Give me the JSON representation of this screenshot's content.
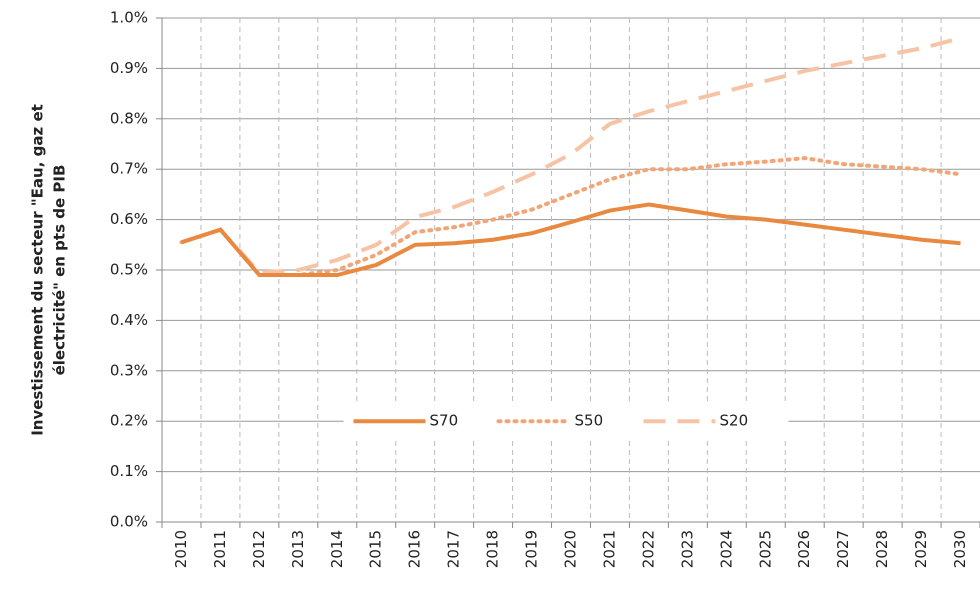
{
  "chart_data": {
    "type": "line",
    "y_label": [
      "Investissement du secteur \"Eau, gaz et",
      "électricité\" en pts de PIB"
    ],
    "categories": [
      "2010",
      "2011",
      "2012",
      "2013",
      "2014",
      "2015",
      "2016",
      "2017",
      "2018",
      "2019",
      "2020",
      "2021",
      "2022",
      "2023",
      "2024",
      "2025",
      "2026",
      "2027",
      "2028",
      "2029",
      "2030"
    ],
    "series": [
      {
        "name": "S70",
        "color": "#e8893f",
        "line_style": "solid",
        "values": [
          0.555,
          0.58,
          0.49,
          0.49,
          0.49,
          0.51,
          0.55,
          0.553,
          0.56,
          0.573,
          0.595,
          0.618,
          0.63,
          0.618,
          0.606,
          0.6,
          0.59,
          0.58,
          0.57,
          0.56,
          0.553
        ]
      },
      {
        "name": "S50",
        "color": "#f2a577",
        "line_style": "dotted",
        "values": [
          0.555,
          0.58,
          0.49,
          0.49,
          0.5,
          0.53,
          0.575,
          0.585,
          0.6,
          0.62,
          0.65,
          0.68,
          0.7,
          0.7,
          0.71,
          0.715,
          0.722,
          0.71,
          0.705,
          0.7,
          0.69
        ]
      },
      {
        "name": "S20",
        "color": "#f7c3a5",
        "line_style": "dashed",
        "values": [
          0.555,
          0.58,
          0.495,
          0.5,
          0.52,
          0.55,
          0.605,
          0.625,
          0.655,
          0.69,
          0.73,
          0.79,
          0.815,
          0.835,
          0.855,
          0.875,
          0.895,
          0.91,
          0.925,
          0.94,
          0.96
        ]
      }
    ],
    "ylim": [
      0,
      1
    ],
    "yticks": [
      {
        "value": 0,
        "label": "0.0%"
      },
      {
        "value": 0.1,
        "label": "0.1%"
      },
      {
        "value": 0.2,
        "label": "0.2%"
      },
      {
        "value": 0.3,
        "label": "0.3%"
      },
      {
        "value": 0.4,
        "label": "0.4%"
      },
      {
        "value": 0.5,
        "label": "0.5%"
      },
      {
        "value": 0.6,
        "label": "0.6%"
      },
      {
        "value": 0.7,
        "label": "0.7%"
      },
      {
        "value": 0.8,
        "label": "0.8%"
      },
      {
        "value": 0.9,
        "label": "0.9%"
      },
      {
        "value": 1,
        "label": "1.0%"
      }
    ],
    "grid": true,
    "legend": "bottom-center"
  }
}
